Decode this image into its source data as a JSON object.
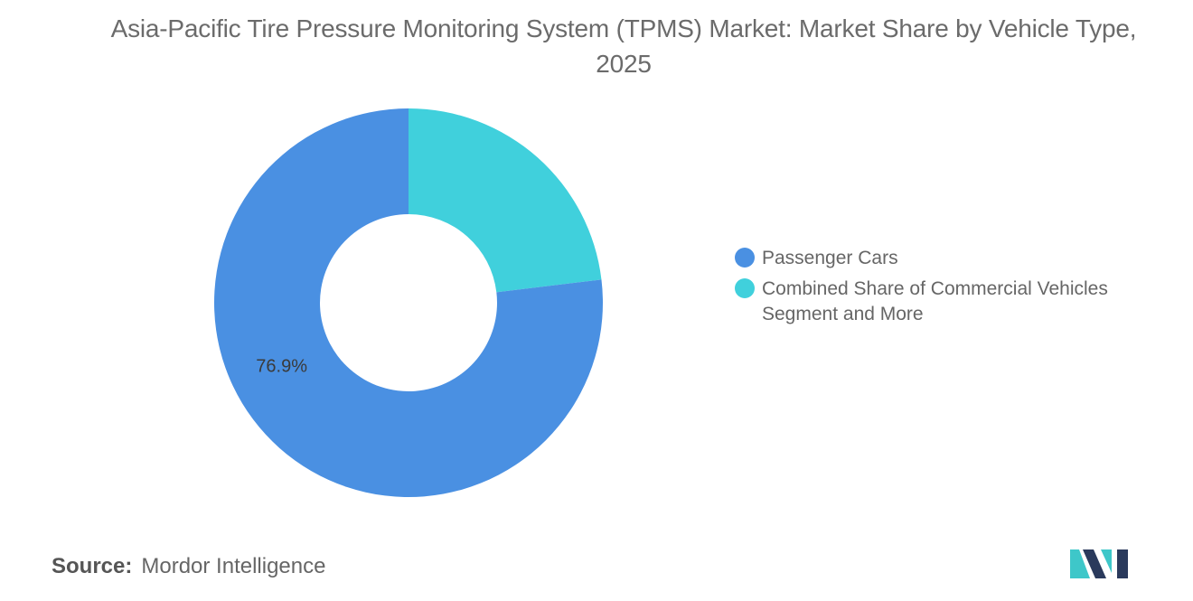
{
  "title": "Asia-Pacific Tire Pressure Monitoring System (TPMS) Market: Market Share by Vehicle Type, 2025",
  "chart_data": {
    "type": "pie",
    "variant": "donut",
    "title": "Asia-Pacific Tire Pressure Monitoring System (TPMS) Market: Market Share by Vehicle Type, 2025",
    "series": [
      {
        "name": "Passenger Cars",
        "value": 76.9,
        "label": "76.9%",
        "color": "#4a90e2"
      },
      {
        "name": "Combined Share of Commercial Vehicles Segment and More",
        "value": 23.1,
        "label": "",
        "color": "#40d0dc"
      }
    ],
    "legend_position": "right"
  },
  "legend": {
    "items": [
      {
        "label": "Passenger Cars",
        "color": "#4a90e2"
      },
      {
        "label": "Combined Share of Commercial Vehicles Segment and More",
        "color": "#40d0dc"
      }
    ]
  },
  "footer": {
    "source_label": "Source:",
    "source_value": "Mordor Intelligence"
  },
  "logo": {
    "icon": "mordor-intelligence-logo-icon",
    "colors": [
      "#2a3a5c",
      "#3ec7c9"
    ]
  }
}
